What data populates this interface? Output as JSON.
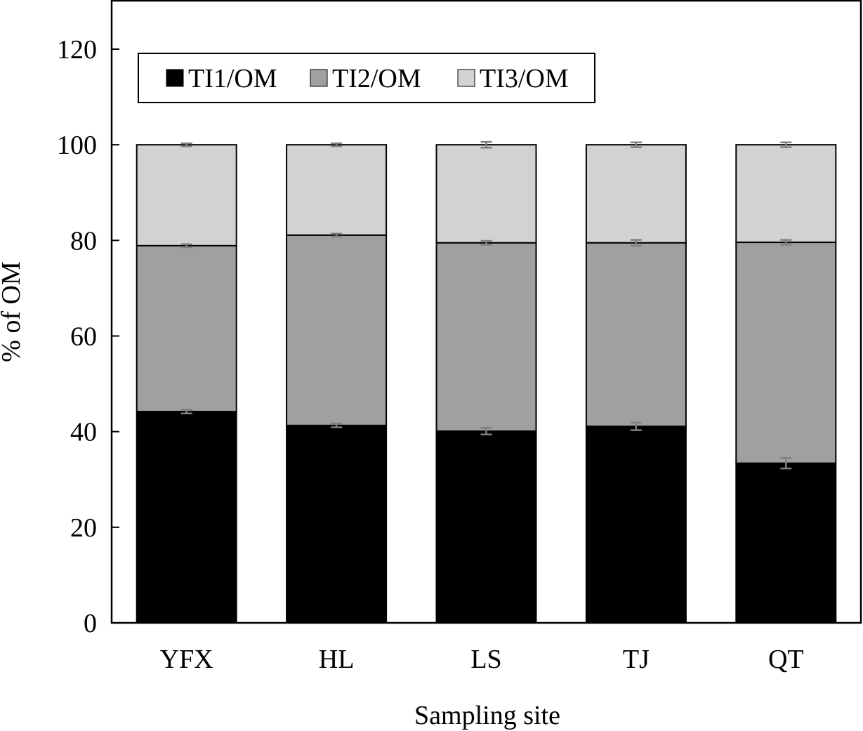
{
  "chart_data": {
    "type": "bar",
    "stacked": true,
    "title": "",
    "xlabel": "Sampling site",
    "ylabel": "% of OM",
    "ylim": [
      0,
      120
    ],
    "yticks": [
      0,
      20,
      40,
      60,
      80,
      100,
      120
    ],
    "categories": [
      "YFX",
      "HL",
      "LS",
      "TJ",
      "QT"
    ],
    "series": [
      {
        "name": "TI1/OM",
        "color": "#000000",
        "values": [
          44.2,
          41.3,
          40.1,
          41.1,
          33.4
        ],
        "errors": [
          0.4,
          0.4,
          0.7,
          0.8,
          1.1
        ]
      },
      {
        "name": "TI2/OM",
        "color": "#a0a0a0",
        "values": [
          34.7,
          39.8,
          39.4,
          38.4,
          46.2
        ],
        "errors": [
          0.3,
          0.3,
          0.4,
          0.6,
          0.5
        ]
      },
      {
        "name": "TI3/OM",
        "color": "#d2d2d2",
        "values": [
          21.1,
          18.9,
          20.5,
          20.5,
          20.4
        ],
        "errors": [
          0.3,
          0.3,
          0.6,
          0.5,
          0.5
        ]
      }
    ],
    "grid": false,
    "legend_position": "top-left"
  }
}
